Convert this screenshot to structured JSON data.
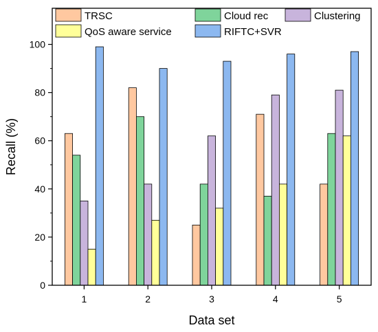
{
  "chart_data": {
    "type": "bar",
    "xlabel": "Data set",
    "ylabel": "Recall (%)",
    "categories": [
      "1",
      "2",
      "3",
      "4",
      "5"
    ],
    "ylim": [
      0,
      115
    ],
    "yticks": [
      0,
      20,
      40,
      60,
      80,
      100
    ],
    "grid": false,
    "legend_position": "top",
    "series": [
      {
        "name": "TRSC",
        "color": "#FFC8A0",
        "values": [
          63,
          82,
          25,
          71,
          42
        ]
      },
      {
        "name": "Cloud rec",
        "color": "#7FD49B",
        "values": [
          54,
          70,
          42,
          37,
          63
        ]
      },
      {
        "name": "Clustering",
        "color": "#C8B4DC",
        "values": [
          35,
          42,
          62,
          79,
          81
        ]
      },
      {
        "name": "QoS aware service",
        "color": "#FFFF99",
        "values": [
          15,
          27,
          32,
          42,
          62
        ]
      },
      {
        "name": "RIFTC+SVR",
        "color": "#8CB8F0",
        "values": [
          99,
          90,
          93,
          96,
          97
        ]
      }
    ]
  }
}
